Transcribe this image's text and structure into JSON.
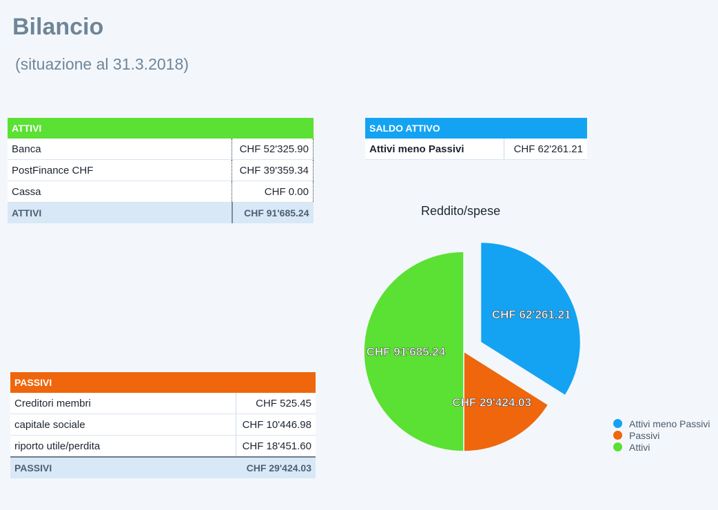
{
  "header": {
    "title": "Bilancio",
    "subtitle": "(situazione al 31.3.2018)"
  },
  "attivi": {
    "header": "ATTIVI",
    "rows": [
      {
        "label": "Banca",
        "value": "CHF 52'325.90"
      },
      {
        "label": "PostFinance CHF",
        "value": "CHF 39'359.34"
      },
      {
        "label": "Cassa",
        "value": "CHF 0.00"
      }
    ],
    "total_label": "ATTIVI",
    "total_value": "CHF 91'685.24",
    "color": "#5be034"
  },
  "passivi": {
    "header": "PASSIVI",
    "rows": [
      {
        "label": "Creditori membri",
        "value": "CHF 525.45"
      },
      {
        "label": "capitale sociale",
        "value": "CHF 10'446.98"
      },
      {
        "label": "riporto utile/perdita",
        "value": "CHF 18'451.60"
      }
    ],
    "total_label": "PASSIVI",
    "total_value": "CHF 29'424.03",
    "color": "#ef660c"
  },
  "saldo": {
    "header": "SALDO ATTIVO",
    "label": "Attivi meno Passivi",
    "value": "CHF 62'261.21",
    "color": "#14a3f2"
  },
  "chart_data": {
    "type": "pie",
    "title": "Reddito/spese",
    "slices": [
      {
        "name": "Attivi meno Passivi",
        "value": 62261.21,
        "label": "CHF 62'261.21",
        "color": "#14a3f2",
        "exploded": true
      },
      {
        "name": "Passivi",
        "value": 29424.03,
        "label": "CHF 29'424.03",
        "color": "#ef660c",
        "exploded": false
      },
      {
        "name": "Attivi",
        "value": 91685.24,
        "label": "CHF 91'685.24",
        "color": "#5be034",
        "exploded": false
      }
    ],
    "legend_position": "bottom-right"
  }
}
